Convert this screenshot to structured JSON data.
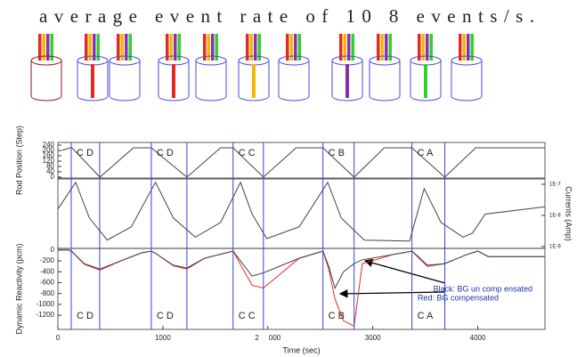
{
  "text": "average event rate of 10 8 events/s.",
  "chart_data": [
    {
      "type": "line",
      "y_label": "Rod Position (Step)",
      "x": [
        40,
        130,
        400,
        720,
        890,
        1229,
        1550,
        1669,
        1958,
        2270,
        2525,
        2822,
        3110,
        3373,
        3686,
        3980,
        4640
      ],
      "series": [
        {
          "color": "#444444",
          "values": [
            200,
            224,
            0,
            220,
            220,
            0,
            220,
            220,
            0,
            220,
            220,
            0,
            220,
            220,
            0,
            220,
            220
          ]
        }
      ],
      "ylim": [
        -7,
        260
      ],
      "yticks": [
        0,
        40,
        80,
        120,
        160,
        200,
        240
      ],
      "regions": [
        {
          "start": 127,
          "end": 398,
          "label": "C D"
        },
        {
          "start": 890,
          "end": 1229,
          "label": "C D"
        },
        {
          "start": 1669,
          "end": 1958,
          "label": "C C"
        },
        {
          "start": 2525,
          "end": 2822,
          "label": "C B"
        },
        {
          "start": 3373,
          "end": 3686,
          "label": "C A"
        }
      ]
    },
    {
      "type": "line",
      "y2_label": "Currents (Amp)",
      "log_scale": true,
      "x": [
        0,
        170,
        300,
        470,
        700,
        930,
        1100,
        1310,
        1550,
        1740,
        1850,
        1990,
        2300,
        2570,
        2700,
        2920,
        3350,
        3490,
        3650,
        3860,
        3950,
        4070,
        4640
      ],
      "series": [
        {
          "color": "#444444",
          "axis": "y2",
          "values": [
            1.6e-08,
            1.15e-07,
            8.2e-09,
            1.6e-09,
            4.3e-09,
            1.15e-07,
            8.2e-09,
            2e-09,
            5.9e-09,
            1.15e-07,
            1.1e-08,
            1.8e-09,
            4.3e-09,
            1.15e-07,
            8.2e-09,
            1.6e-09,
            1.5e-09,
            7.2e-08,
            5.9e-09,
            2e-09,
            2.7e-09,
            1.1e-08,
            1.9e-08
          ]
        }
      ],
      "y2lim": [
        8.7e-10,
        1.48e-07
      ],
      "y2ticks": [
        {
          "value": 1e-07,
          "label": "1E-7"
        },
        {
          "value": 1e-08,
          "label": "1E-8"
        },
        {
          "value": 1e-09,
          "label": "1E-9"
        }
      ]
    },
    {
      "type": "line",
      "y_label": "Dynamic Reactivity (pcm)",
      "x_label": "Time (sec)",
      "x": [
        0,
        100,
        130,
        250,
        400,
        600,
        800,
        890,
        930,
        1100,
        1229,
        1400,
        1669,
        1720,
        1850,
        1958,
        2300,
        2525,
        2580,
        2640,
        2720,
        2822,
        2900,
        3200,
        3373,
        3420,
        3520,
        3686,
        3900,
        4000,
        4100,
        4640
      ],
      "series": [
        {
          "color": "#e8281e",
          "values": [
            0,
            0,
            -20,
            -260,
            -370,
            -200,
            -50,
            -20,
            -60,
            -290,
            -350,
            -150,
            -20,
            -200,
            -650,
            -700,
            -150,
            -20,
            -350,
            -900,
            -1300,
            -1400,
            -250,
            -80,
            -20,
            -110,
            -300,
            -250,
            -80,
            -20,
            -120,
            -120
          ]
        },
        {
          "color": "#444444",
          "values": [
            0,
            0,
            -20,
            -250,
            -350,
            -200,
            -50,
            -20,
            -60,
            -280,
            -330,
            -150,
            -20,
            -150,
            -480,
            -420,
            -150,
            -20,
            -300,
            -700,
            -400,
            -250,
            -180,
            -80,
            -20,
            -100,
            -280,
            -250,
            -80,
            -20,
            -120,
            -120
          ]
        }
      ],
      "xlim": [
        0,
        4640
      ],
      "xticks": [
        0,
        1000,
        {
          "value": 2000,
          "label": "2     000"
        },
        3000,
        4000
      ],
      "ylim": [
        -1460,
        30
      ],
      "yticks": [
        0,
        -200,
        -400,
        -600,
        -800,
        -1000,
        -1200
      ],
      "annotations": [
        "Black: BG un comp ensated",
        "Red: BG compensated"
      ]
    }
  ]
}
